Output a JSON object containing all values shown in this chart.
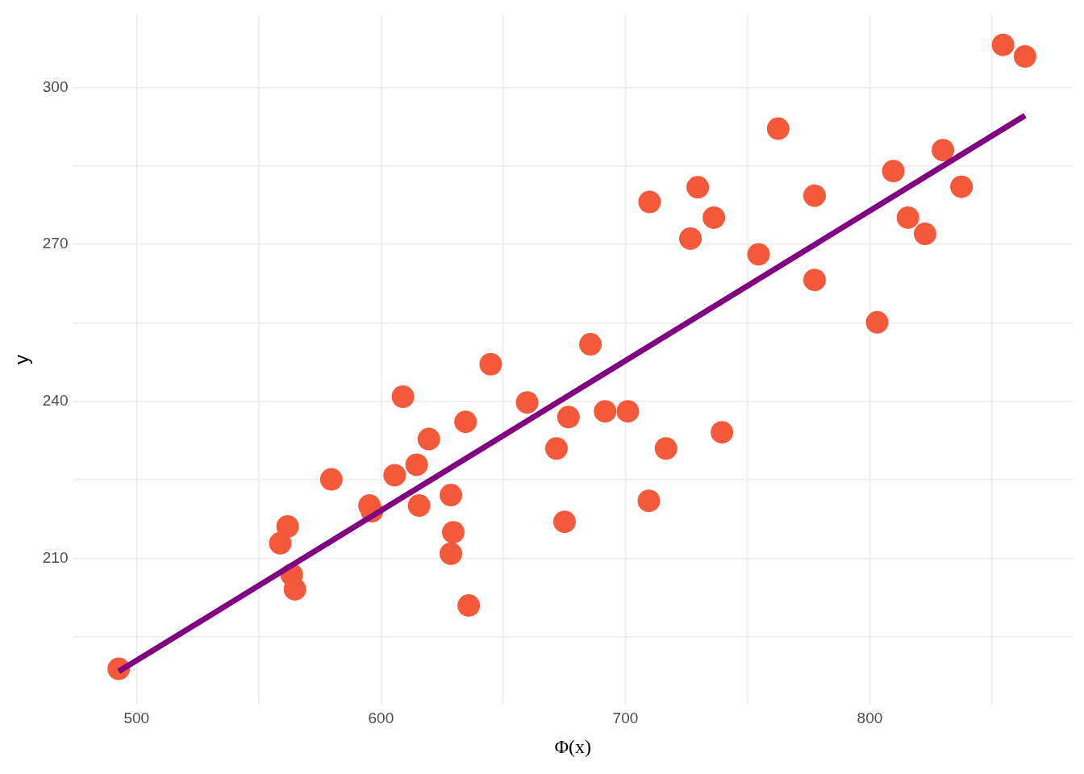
{
  "chart_data": {
    "type": "scatter",
    "xlabel": "Φ(x)",
    "ylabel": "y",
    "xlim": [
      474,
      883
    ],
    "ylim": [
      182,
      314
    ],
    "xticks": [
      500,
      {
        "value": 550,
        "label": null
      },
      600,
      {
        "value": 650,
        "label": null
      },
      700,
      {
        "value": 750,
        "label": null
      },
      800,
      {
        "value": 850,
        "label": null
      }
    ],
    "yticks": [
      {
        "value": 195,
        "label": null
      },
      210,
      {
        "value": 225,
        "label": null
      },
      240,
      {
        "value": 255,
        "label": null
      },
      270,
      {
        "value": 285,
        "label": null
      },
      300
    ],
    "grid": true,
    "legend": false,
    "marker": "circle",
    "series": [
      {
        "color": "#f4593b",
        "x": [
          492.7,
          558.8,
          561.8,
          563.5,
          564.8,
          579.7,
          595.3,
          596.3,
          605.6,
          609.0,
          614.6,
          615.6,
          619.6,
          628.6,
          629.6,
          628.6,
          634.6,
          635.9,
          644.9,
          659.8,
          671.8,
          675.1,
          676.7,
          685.7,
          691.7,
          701.0,
          709.6,
          709.9,
          716.6,
          726.6,
          729.6,
          736.2,
          739.5,
          754.5,
          762.5,
          777.4,
          777.4,
          803.0,
          809.6,
          815.6,
          822.6,
          829.9,
          837.5,
          854.5,
          863.5
        ],
        "values": [
          188.9,
          212.9,
          216.1,
          206.9,
          204.1,
          225.1,
          220.1,
          219.0,
          225.9,
          240.9,
          227.9,
          220.1,
          232.8,
          222.1,
          215.0,
          210.9,
          236.1,
          201.0,
          247.1,
          239.8,
          231.0,
          217.0,
          237.0,
          250.9,
          238.1,
          238.1,
          221.0,
          278.1,
          231.0,
          271.1,
          280.9,
          275.1,
          234.1,
          268.1,
          292.1,
          279.3,
          263.2,
          255.1,
          284.0,
          275.1,
          272.0,
          288.0,
          281.0,
          308.1,
          305.9
        ]
      },
      {
        "type": "line",
        "color": "#800080",
        "marker": "none",
        "line_style": "solid",
        "x": [
          492.7,
          863.5
        ],
        "values": [
          188.4,
          294.6
        ]
      }
    ]
  }
}
